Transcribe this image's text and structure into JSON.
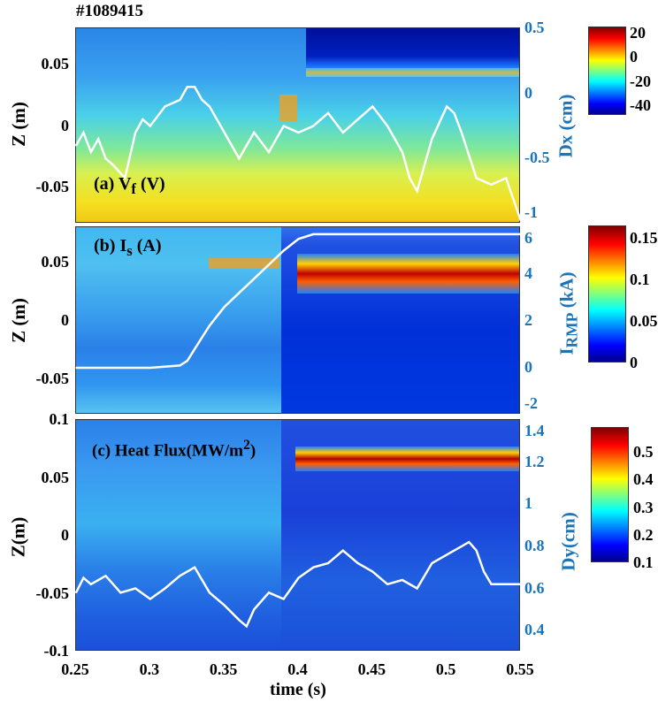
{
  "shot_label": "#1089415",
  "chart_data": [
    {
      "type": "heatmap",
      "panel_label": "(a) V",
      "panel_label_sub": "f",
      "panel_label_unit": "(V)",
      "xlim": [
        0.25,
        0.55
      ],
      "ylabel": "Z (m)",
      "ylim": [
        -0.08,
        0.08
      ],
      "yticks": [
        "0.05",
        "0",
        "-0.05"
      ],
      "right_axis": {
        "label": "Dx (cm)",
        "ylim": [
          -1,
          0.5
        ],
        "ticks": [
          "0.5",
          "0",
          "-0.5",
          "-1"
        ],
        "line": {
          "color": "#ffffff",
          "x": [
            0.25,
            0.255,
            0.26,
            0.265,
            0.27,
            0.275,
            0.283,
            0.29,
            0.295,
            0.3,
            0.31,
            0.32,
            0.325,
            0.33,
            0.335,
            0.34,
            0.35,
            0.36,
            0.37,
            0.38,
            0.39,
            0.4,
            0.41,
            0.42,
            0.43,
            0.44,
            0.45,
            0.46,
            0.47,
            0.475,
            0.48,
            0.49,
            0.5,
            0.505,
            0.51,
            0.52,
            0.53,
            0.54,
            0.55
          ],
          "y": [
            -0.4,
            -0.3,
            -0.45,
            -0.35,
            -0.5,
            -0.55,
            -0.65,
            -0.3,
            -0.2,
            -0.25,
            -0.1,
            -0.05,
            0.05,
            0.05,
            -0.05,
            -0.1,
            -0.3,
            -0.5,
            -0.3,
            -0.45,
            -0.25,
            -0.3,
            -0.25,
            -0.15,
            -0.3,
            -0.2,
            -0.1,
            -0.25,
            -0.45,
            -0.65,
            -0.75,
            -0.35,
            -0.1,
            -0.15,
            -0.3,
            -0.65,
            -0.7,
            -0.65,
            -0.98
          ]
        }
      },
      "colorbar": {
        "ticks": [
          "20",
          "0",
          "-20",
          "-40"
        ],
        "range": [
          -48,
          25
        ]
      }
    },
    {
      "type": "heatmap",
      "panel_label": "(b) I",
      "panel_label_sub": "s",
      "panel_label_unit": "(A)",
      "xlim": [
        0.25,
        0.55
      ],
      "ylabel": "Z (m)",
      "ylim": [
        -0.08,
        0.08
      ],
      "yticks": [
        "0.05",
        "0",
        "-0.05"
      ],
      "right_axis": {
        "label": "I",
        "label_sub": "RMP",
        "label_unit": "(kA)",
        "ylim": [
          -2,
          6
        ],
        "ticks": [
          "6",
          "4",
          "2",
          "0",
          "-2"
        ],
        "line": {
          "color": "#ffffff",
          "x": [
            0.25,
            0.3,
            0.32,
            0.325,
            0.33,
            0.34,
            0.35,
            0.36,
            0.37,
            0.38,
            0.39,
            0.4,
            0.41,
            0.45,
            0.5,
            0.55
          ],
          "y": [
            0,
            0,
            0.1,
            0.3,
            0.8,
            1.8,
            2.6,
            3.2,
            3.8,
            4.4,
            5.0,
            5.5,
            5.7,
            5.7,
            5.7,
            5.7
          ]
        }
      },
      "colorbar": {
        "ticks": [
          "0.15",
          "0.1",
          "0.05",
          "0"
        ],
        "range": [
          0,
          0.165
        ]
      }
    },
    {
      "type": "heatmap",
      "panel_label": "(c) Heat Flux(MW/m",
      "panel_label_sup": "2",
      "panel_label_end": ")",
      "xlim": [
        0.25,
        0.55
      ],
      "xlabel": "time (s)",
      "xticks": [
        "0.25",
        "0.3",
        "0.35",
        "0.4",
        "0.45",
        "0.5",
        "0.55"
      ],
      "ylabel": "Z(m)",
      "ylim": [
        -0.1,
        0.1
      ],
      "yticks": [
        "0.1",
        "0.05",
        "0",
        "-0.05",
        "-0.1"
      ],
      "right_axis": {
        "label": "Dy(cm)",
        "ylim": [
          0.3,
          1.4
        ],
        "ticks": [
          "1.4",
          "1.2",
          "1",
          "0.8",
          "0.6",
          "0.4"
        ],
        "line": {
          "color": "#ffffff",
          "x": [
            0.25,
            0.255,
            0.26,
            0.27,
            0.28,
            0.29,
            0.3,
            0.31,
            0.32,
            0.33,
            0.34,
            0.35,
            0.36,
            0.365,
            0.37,
            0.38,
            0.39,
            0.4,
            0.41,
            0.42,
            0.43,
            0.44,
            0.45,
            0.46,
            0.47,
            0.48,
            0.49,
            0.5,
            0.51,
            0.515,
            0.52,
            0.525,
            0.53,
            0.54,
            0.55
          ],
          "y": [
            0.58,
            0.65,
            0.62,
            0.66,
            0.58,
            0.6,
            0.55,
            0.6,
            0.66,
            0.7,
            0.58,
            0.52,
            0.45,
            0.42,
            0.5,
            0.58,
            0.55,
            0.65,
            0.7,
            0.72,
            0.78,
            0.72,
            0.68,
            0.62,
            0.64,
            0.6,
            0.72,
            0.76,
            0.8,
            0.82,
            0.78,
            0.68,
            0.62,
            0.62,
            0.62
          ]
        }
      },
      "colorbar": {
        "ticks": [
          "0.5",
          "0.4",
          "0.3",
          "0.2",
          "0.1"
        ],
        "range": [
          0.1,
          0.59
        ]
      }
    }
  ]
}
